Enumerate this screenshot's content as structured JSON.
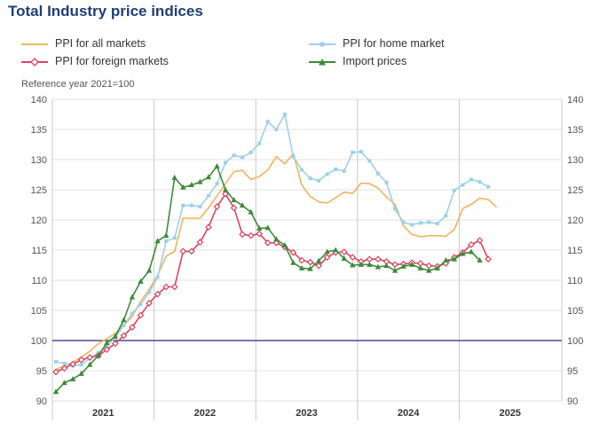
{
  "title": "Total Industry price indices",
  "reference_note": "Reference year 2021=100",
  "chart_data": {
    "type": "line",
    "title": "Total Industry price indices",
    "ylabel": "Reference year 2021=100",
    "ylim": [
      90,
      140
    ],
    "yticks": [
      "140",
      "135",
      "130",
      "125",
      "120",
      "115",
      "110",
      "105",
      "100",
      "95",
      "90"
    ],
    "year_labels": [
      "2021",
      "2022",
      "2023",
      "2024",
      "2025"
    ],
    "reference_line": 100,
    "x_start": "2021-01",
    "series": [
      {
        "name": "PPI for all markets",
        "color": "#f2b35b",
        "marker": "none",
        "values": [
          95.2,
          95.8,
          96.4,
          97.3,
          98.2,
          99.5,
          100.3,
          101.2,
          102.5,
          104.0,
          106.5,
          108.5,
          110.8,
          114.0,
          114.8,
          120.3,
          120.3,
          120.3,
          122.0,
          124.0,
          126.0,
          128.0,
          128.2,
          126.7,
          127.2,
          128.3,
          130.5,
          129.3,
          131.0,
          125.8,
          123.9,
          123.0,
          122.8,
          123.7,
          124.6,
          124.4,
          126.1,
          126.0,
          125.3,
          123.8,
          122.6,
          119.0,
          117.6,
          117.2,
          117.4,
          117.4,
          117.3,
          118.4,
          121.9,
          122.6,
          123.6,
          123.4,
          122.1
        ]
      },
      {
        "name": "PPI for home market",
        "color": "#9dd0ea",
        "marker": "square",
        "values": [
          96.5,
          96.2,
          95.8,
          96.0,
          97.0,
          98.0,
          99.0,
          100.5,
          102.5,
          104.5,
          106.0,
          108.0,
          110.5,
          116.5,
          117.0,
          122.4,
          122.4,
          122.2,
          124.0,
          126.0,
          129.5,
          130.7,
          130.4,
          131.2,
          132.7,
          136.3,
          135.0,
          137.5,
          130.5,
          128.3,
          126.9,
          126.5,
          127.6,
          128.4,
          128.1,
          131.2,
          131.3,
          129.8,
          127.7,
          126.2,
          121.8,
          119.6,
          119.2,
          119.5,
          119.6,
          119.4,
          120.7,
          124.9,
          125.8,
          126.7,
          126.3,
          125.5
        ]
      },
      {
        "name": "PPI for foreign markets",
        "color": "#d84560",
        "marker": "diamond",
        "values": [
          94.8,
          95.4,
          96.1,
          96.8,
          97.2,
          97.5,
          98.5,
          99.5,
          100.8,
          102.2,
          104.2,
          106.2,
          107.7,
          108.9,
          108.9,
          114.8,
          114.8,
          116.3,
          118.8,
          122.2,
          124.3,
          122.0,
          117.6,
          117.4,
          117.7,
          116.2,
          116.2,
          115.5,
          114.6,
          113.3,
          113.0,
          112.4,
          113.8,
          114.6,
          114.7,
          113.8,
          113.1,
          113.5,
          113.5,
          113.1,
          112.6,
          112.7,
          112.9,
          112.8,
          112.4,
          112.3,
          112.8,
          113.8,
          114.6,
          115.9,
          116.6,
          113.5
        ]
      },
      {
        "name": "Import prices",
        "color": "#3c8b3a",
        "marker": "triangle",
        "values": [
          91.5,
          93.0,
          93.6,
          94.5,
          96.0,
          97.5,
          99.6,
          100.7,
          103.4,
          107.2,
          109.8,
          111.6,
          116.5,
          117.4,
          127.0,
          125.4,
          125.8,
          126.3,
          127.1,
          128.9,
          125.0,
          123.3,
          122.4,
          121.3,
          118.6,
          118.7,
          116.8,
          115.8,
          112.9,
          112.0,
          111.9,
          113.2,
          114.7,
          115.0,
          113.6,
          112.5,
          112.6,
          112.6,
          112.2,
          112.4,
          111.6,
          112.3,
          112.6,
          112.0,
          111.6,
          112.0,
          113.3,
          113.5,
          114.4,
          114.7,
          113.3
        ]
      }
    ]
  }
}
